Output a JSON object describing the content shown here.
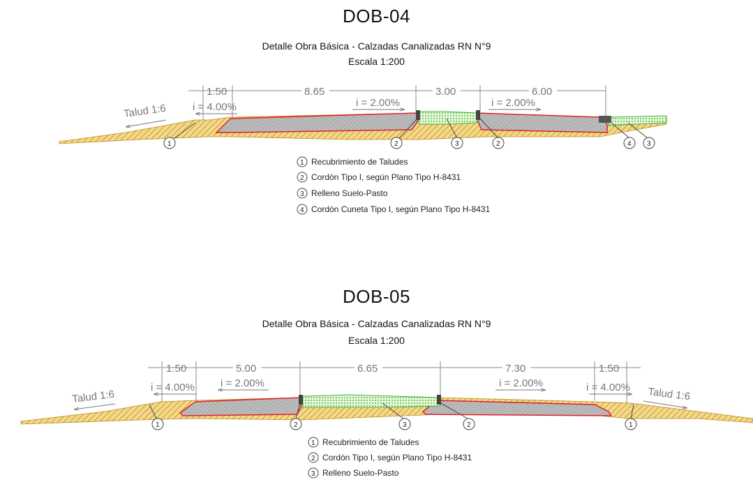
{
  "dob04": {
    "title": "DOB-04",
    "subtitle": "Detalle Obra Básica - Calzadas Canalizadas RN N°9",
    "scale": "Escala 1:200",
    "dims": [
      "1.50",
      "8.65",
      "3.00",
      "6.00"
    ],
    "slopes": [
      "i = 4.00%",
      "i = 2.00%",
      "i = 2.00%"
    ],
    "talud": "Talud 1:6",
    "markers": [
      "1",
      "2",
      "3",
      "2",
      "4",
      "3"
    ],
    "legend": [
      {
        "n": "1",
        "text": "Recubrimiento de Taludes"
      },
      {
        "n": "2",
        "text": "Cordón Tipo I, según Plano Tipo H-8431"
      },
      {
        "n": "3",
        "text": "Relleno Suelo-Pasto"
      },
      {
        "n": "4",
        "text": "Cordón Cuneta Tipo I, según Plano Tipo H-8431"
      }
    ]
  },
  "dob05": {
    "title": "DOB-05",
    "subtitle": "Detalle Obra Básica - Calzadas Canalizadas RN N°9",
    "scale": "Escala 1:200",
    "dims": [
      "1.50",
      "5.00",
      "6.65",
      "7.30",
      "1.50"
    ],
    "slopes": [
      "i = 4.00%",
      "i = 2.00%",
      "i = 2.00%",
      "i = 4.00%"
    ],
    "talud_left": "Talud 1:6",
    "talud_right": "Talud 1:6",
    "markers": [
      "1",
      "2",
      "3",
      "2",
      "1"
    ],
    "legend": [
      {
        "n": "1",
        "text": "Recubrimiento de Taludes"
      },
      {
        "n": "2",
        "text": "Cordón Tipo I, según Plano Tipo H-8431"
      },
      {
        "n": "3",
        "text": "Relleno Suelo-Pasto"
      }
    ]
  },
  "colors": {
    "fill_earth": "#d8a93a",
    "pavement": "#a9a9a9",
    "outline_red": "#e0202a",
    "grass": "#38b838",
    "dim_gray": "#777777"
  }
}
